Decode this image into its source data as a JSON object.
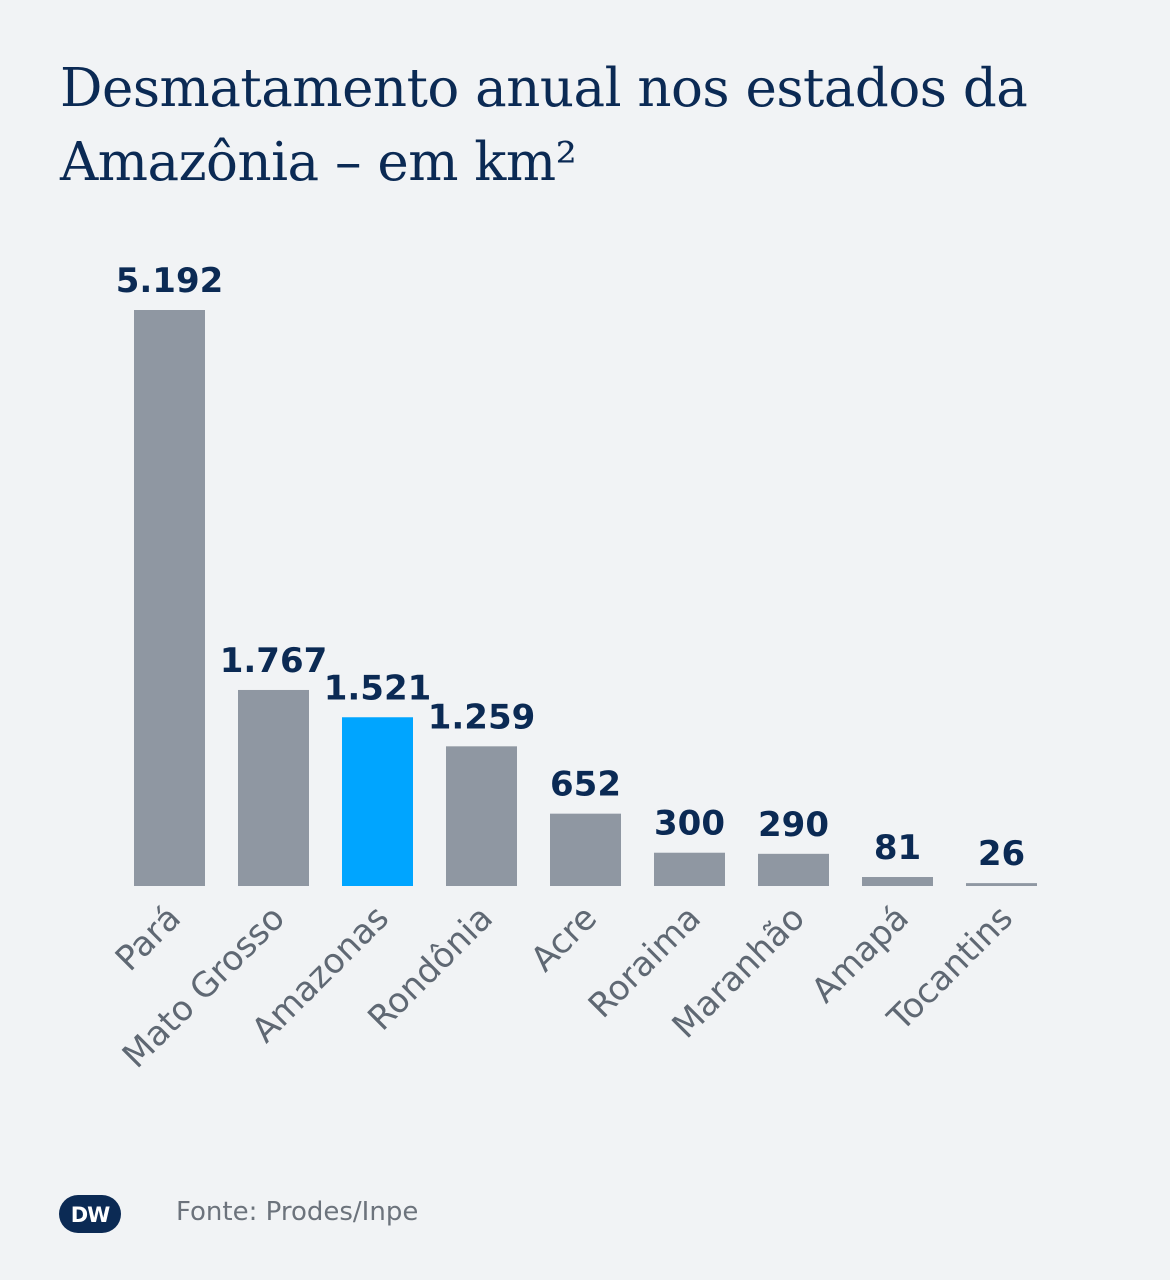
{
  "title": "Desmatamento anual nos estados da Amazônia – em km²",
  "source": "Fonte: Prodes/Inpe",
  "logo": {
    "text": "DW",
    "color": "#0b2a54"
  },
  "colors": {
    "bar": "#8f97a2",
    "highlight": "#00a5ff",
    "value_label": "#0b2a54",
    "tick_label": "#5f6873",
    "background": "#f1f3f5"
  },
  "chart_data": {
    "type": "bar",
    "title": "Desmatamento anual nos estados da Amazônia – em km²",
    "categories": [
      "Pará",
      "Mato Grosso",
      "Amazonas",
      "Rondônia",
      "Acre",
      "Roraima",
      "Maranhão",
      "Amapá",
      "Tocantins"
    ],
    "values": [
      5192,
      1767,
      1521,
      1259,
      652,
      300,
      290,
      81,
      26
    ],
    "value_labels": [
      "5.192",
      "1.767",
      "1.521",
      "1.259",
      "652",
      "300",
      "290",
      "81",
      "26"
    ],
    "highlight": "Amazonas",
    "xlabel": "",
    "ylabel": "",
    "ylim": [
      0,
      5192
    ],
    "grid": false,
    "legend": "none"
  }
}
